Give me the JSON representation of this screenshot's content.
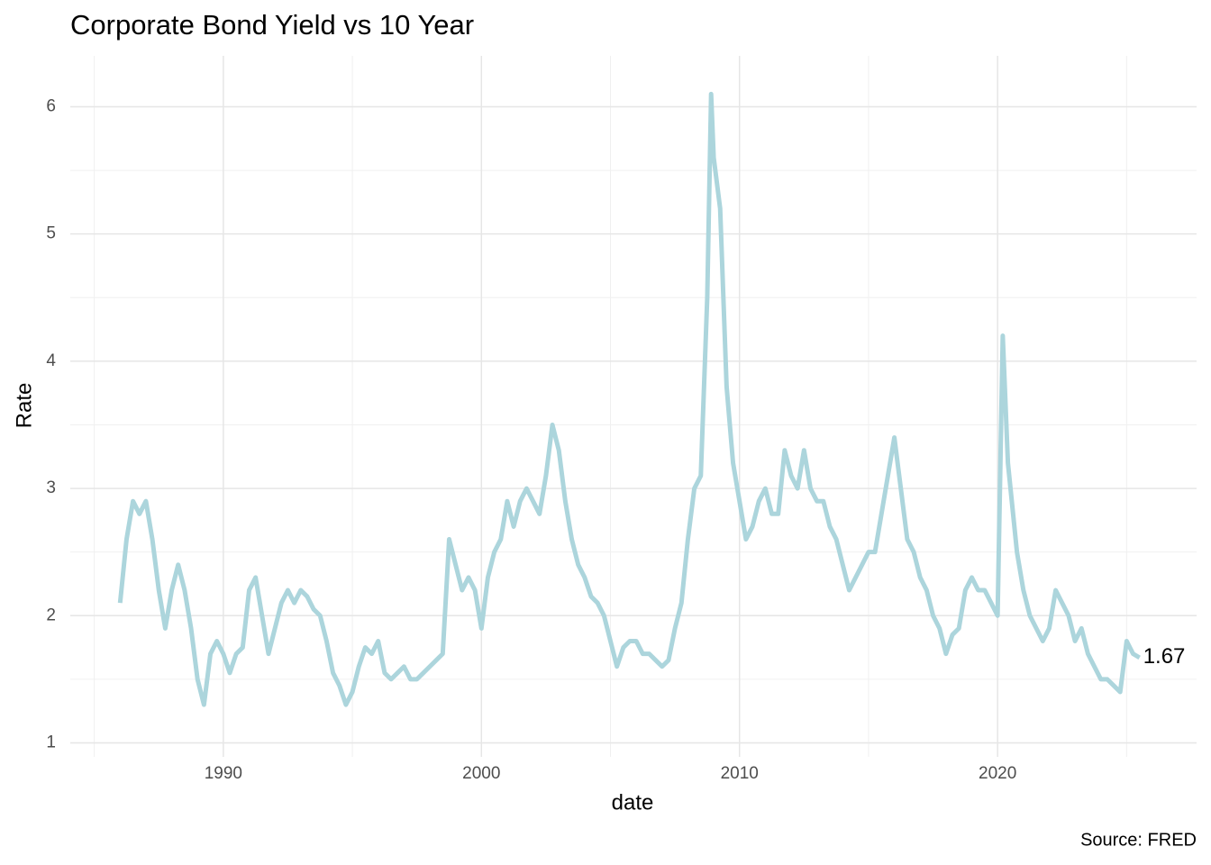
{
  "chart_data": {
    "type": "line",
    "title": "Corporate Bond Yield vs 10 Year",
    "x_label": "date",
    "y_label": "Rate",
    "caption": "Source: FRED",
    "color": "#acd5dc",
    "x": [
      1986.0,
      1986.25,
      1986.5,
      1986.75,
      1987.0,
      1987.25,
      1987.5,
      1987.75,
      1988.0,
      1988.25,
      1988.5,
      1988.75,
      1989.0,
      1989.25,
      1989.5,
      1989.75,
      1990.0,
      1990.25,
      1990.5,
      1990.75,
      1991.0,
      1991.25,
      1991.5,
      1991.75,
      1992.0,
      1992.25,
      1992.5,
      1992.75,
      1993.0,
      1993.25,
      1993.5,
      1993.75,
      1994.0,
      1994.25,
      1994.5,
      1994.75,
      1995.0,
      1995.25,
      1995.5,
      1995.75,
      1996.0,
      1996.25,
      1996.5,
      1996.75,
      1997.0,
      1997.25,
      1997.5,
      1997.75,
      1998.0,
      1998.25,
      1998.5,
      1998.75,
      1999.0,
      1999.25,
      1999.5,
      1999.75,
      2000.0,
      2000.25,
      2000.5,
      2000.75,
      2001.0,
      2001.25,
      2001.5,
      2001.75,
      2002.0,
      2002.25,
      2002.5,
      2002.75,
      2003.0,
      2003.25,
      2003.5,
      2003.75,
      2004.0,
      2004.25,
      2004.5,
      2004.75,
      2005.0,
      2005.25,
      2005.5,
      2005.75,
      2006.0,
      2006.25,
      2006.5,
      2006.75,
      2007.0,
      2007.25,
      2007.5,
      2007.75,
      2008.0,
      2008.25,
      2008.5,
      2008.75,
      2008.9,
      2009.0,
      2009.25,
      2009.5,
      2009.75,
      2010.0,
      2010.25,
      2010.5,
      2010.75,
      2011.0,
      2011.25,
      2011.5,
      2011.75,
      2012.0,
      2012.25,
      2012.5,
      2012.75,
      2013.0,
      2013.25,
      2013.5,
      2013.75,
      2014.0,
      2014.25,
      2014.5,
      2014.75,
      2015.0,
      2015.25,
      2015.5,
      2015.75,
      2016.0,
      2016.25,
      2016.5,
      2016.75,
      2017.0,
      2017.25,
      2017.5,
      2017.75,
      2018.0,
      2018.25,
      2018.5,
      2018.75,
      2019.0,
      2019.25,
      2019.5,
      2019.75,
      2020.0,
      2020.2,
      2020.4,
      2020.6,
      2020.75,
      2021.0,
      2021.25,
      2021.5,
      2021.75,
      2022.0,
      2022.25,
      2022.5,
      2022.75,
      2023.0,
      2023.25,
      2023.5,
      2023.75,
      2024.0,
      2024.25,
      2024.5,
      2024.75,
      2025.0,
      2025.25,
      2025.5
    ],
    "values": [
      2.1,
      2.6,
      2.9,
      2.8,
      2.9,
      2.6,
      2.2,
      1.9,
      2.2,
      2.4,
      2.2,
      1.9,
      1.5,
      1.3,
      1.7,
      1.8,
      1.7,
      1.55,
      1.7,
      1.75,
      2.2,
      2.3,
      2.0,
      1.7,
      1.9,
      2.1,
      2.2,
      2.1,
      2.2,
      2.15,
      2.05,
      2.0,
      1.8,
      1.55,
      1.45,
      1.3,
      1.4,
      1.6,
      1.75,
      1.7,
      1.8,
      1.55,
      1.5,
      1.55,
      1.6,
      1.5,
      1.5,
      1.55,
      1.6,
      1.65,
      1.7,
      2.6,
      2.4,
      2.2,
      2.3,
      2.2,
      1.9,
      2.3,
      2.5,
      2.6,
      2.9,
      2.7,
      2.9,
      3.0,
      2.9,
      2.8,
      3.1,
      3.5,
      3.3,
      2.9,
      2.6,
      2.4,
      2.3,
      2.15,
      2.1,
      2.0,
      1.8,
      1.6,
      1.75,
      1.8,
      1.8,
      1.7,
      1.7,
      1.65,
      1.6,
      1.65,
      1.9,
      2.1,
      2.6,
      3.0,
      3.1,
      4.5,
      6.1,
      5.6,
      5.2,
      3.8,
      3.2,
      2.9,
      2.6,
      2.7,
      2.9,
      3.0,
      2.8,
      2.8,
      3.3,
      3.1,
      3.0,
      3.3,
      3.0,
      2.9,
      2.9,
      2.7,
      2.6,
      2.4,
      2.2,
      2.3,
      2.4,
      2.5,
      2.5,
      2.8,
      3.1,
      3.4,
      3.0,
      2.6,
      2.5,
      2.3,
      2.2,
      2.0,
      1.9,
      1.7,
      1.85,
      1.9,
      2.2,
      2.3,
      2.2,
      2.2,
      2.1,
      2.0,
      4.2,
      3.2,
      2.8,
      2.5,
      2.2,
      2.0,
      1.9,
      1.8,
      1.9,
      2.2,
      2.1,
      2.0,
      1.8,
      1.9,
      1.7,
      1.6,
      1.5,
      1.5,
      1.45,
      1.4,
      1.8,
      1.7,
      1.67
    ],
    "xlim": [
      1984.07,
      2027.71
    ],
    "xticks": [
      1990,
      2000,
      2010,
      2020
    ],
    "x_minor_ticks": [
      1985,
      1995,
      2005,
      2015,
      2025
    ],
    "ylim": [
      0.89,
      6.4
    ],
    "yticks": [
      1,
      2,
      3,
      4,
      5,
      6
    ],
    "y_minor_ticks": [
      1.5,
      2.5,
      3.5,
      4.5,
      5.5
    ],
    "grid": true
  }
}
